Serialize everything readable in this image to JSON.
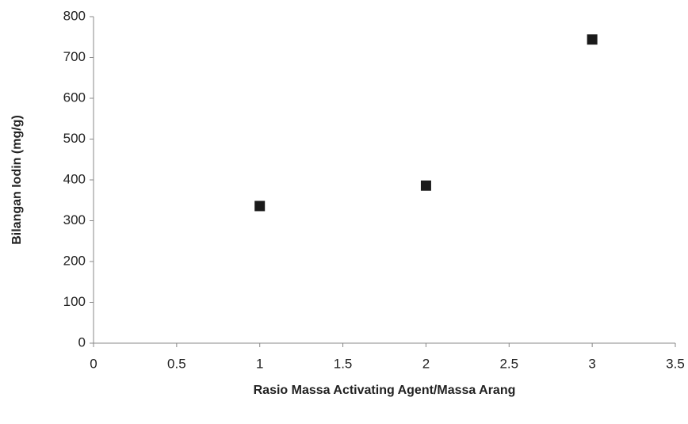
{
  "chart_data": {
    "type": "scatter",
    "x_label": "Rasio Massa Activating Agent/Massa Arang",
    "y_label": "Bilangan Iodin  (mg/g)",
    "series": [
      {
        "x": [
          1,
          2,
          3
        ],
        "values": [
          336,
          386,
          744
        ],
        "color": "#1a1a1a"
      }
    ],
    "xlim": [
      0,
      3.5
    ],
    "xticks": [
      0,
      0.5,
      1,
      1.5,
      2,
      2.5,
      3,
      3.5
    ],
    "ylim": [
      0,
      800
    ],
    "yticks": [
      0,
      100,
      200,
      300,
      400,
      500,
      600,
      700,
      800
    ]
  }
}
